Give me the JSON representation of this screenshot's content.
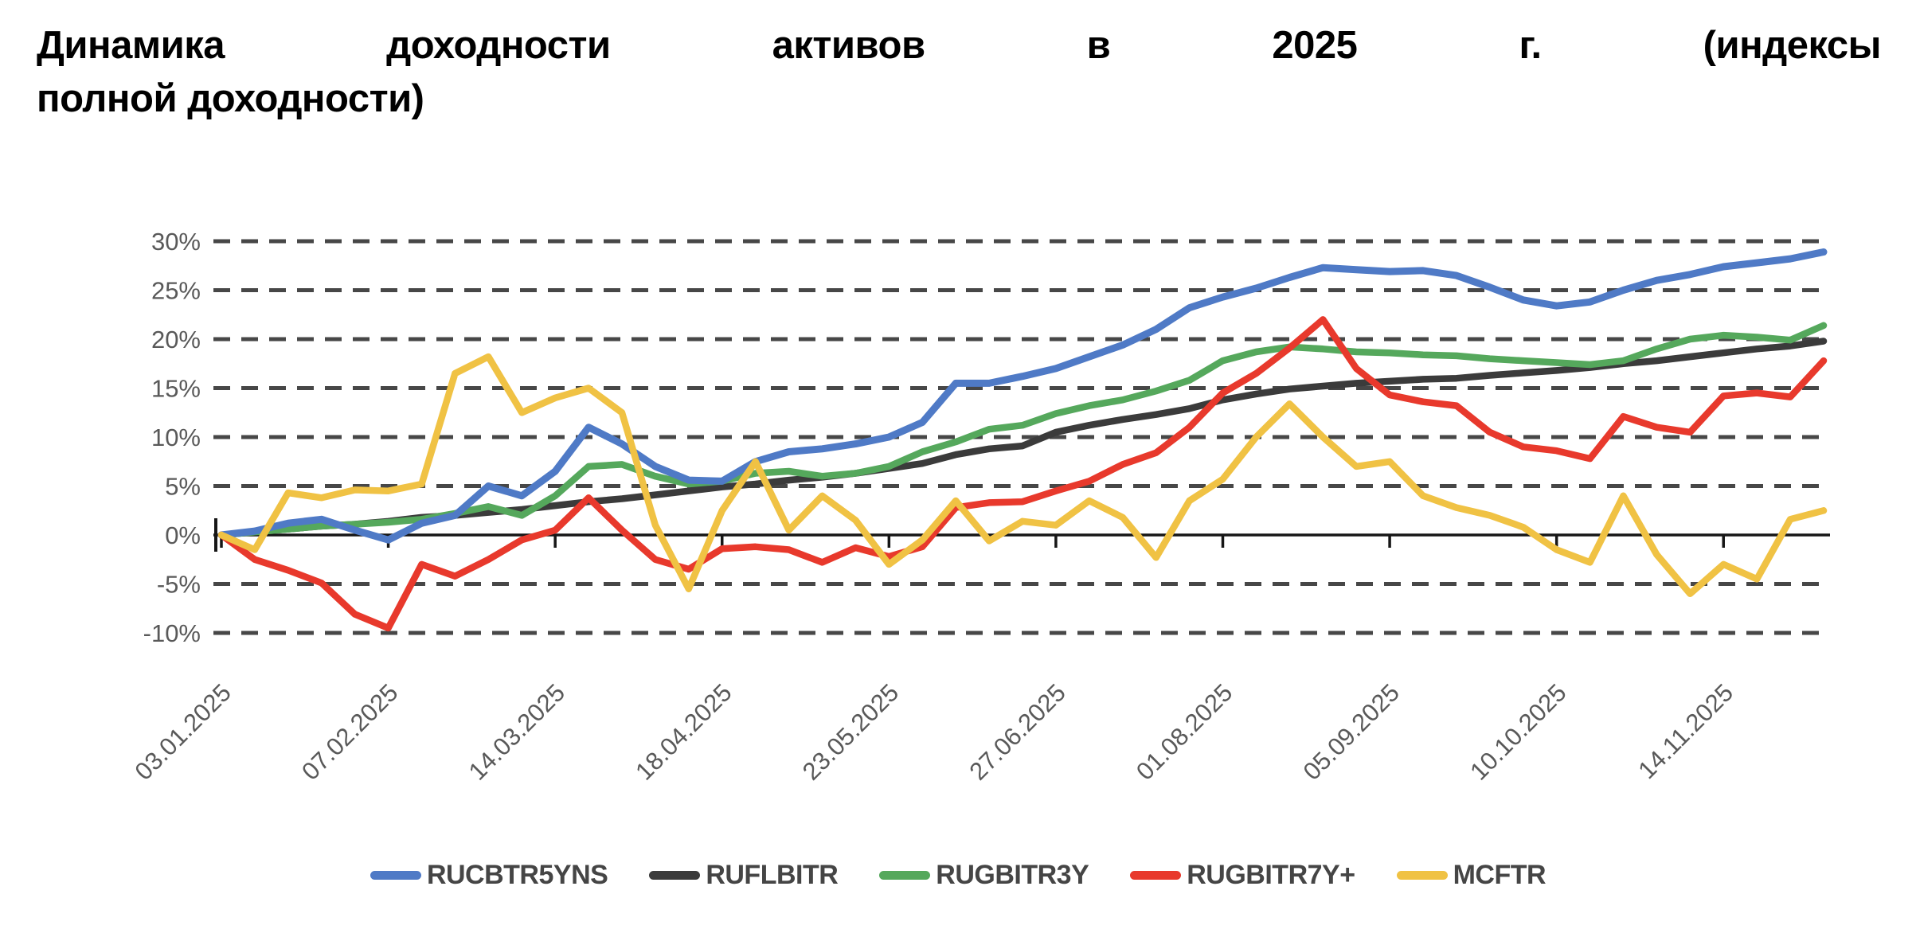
{
  "page": {
    "background": "#ffffff"
  },
  "title": {
    "line1": "Динамика доходности активов в 2025 г. (индексы",
    "line2": "полной доходности)"
  },
  "chart_data": {
    "type": "line",
    "title": "Динамика доходности активов в 2025 г. (индексы полной доходности)",
    "x_type": "weekly dates",
    "x_dates": [
      "03.01.2025",
      "10.01.2025",
      "17.01.2025",
      "24.01.2025",
      "31.01.2025",
      "07.02.2025",
      "14.02.2025",
      "21.02.2025",
      "28.02.2025",
      "07.03.2025",
      "14.03.2025",
      "21.03.2025",
      "28.03.2025",
      "04.04.2025",
      "11.04.2025",
      "18.04.2025",
      "25.04.2025",
      "02.05.2025",
      "09.05.2025",
      "16.05.2025",
      "23.05.2025",
      "30.05.2025",
      "06.06.2025",
      "13.06.2025",
      "20.06.2025",
      "27.06.2025",
      "04.07.2025",
      "11.07.2025",
      "18.07.2025",
      "25.07.2025",
      "01.08.2025",
      "08.08.2025",
      "15.08.2025",
      "22.08.2025",
      "29.08.2025",
      "05.09.2025",
      "12.09.2025",
      "19.09.2025",
      "26.09.2025",
      "03.10.2025",
      "10.10.2025",
      "17.10.2025",
      "24.10.2025",
      "31.10.2025",
      "07.11.2025",
      "14.11.2025",
      "21.11.2025",
      "28.11.2025",
      "05.12.2025"
    ],
    "x_tick_indices": [
      0,
      5,
      10,
      15,
      20,
      25,
      30,
      35,
      40,
      45
    ],
    "x_tick_labels": [
      "03.01.2025",
      "07.02.2025",
      "14.03.2025",
      "18.04.2025",
      "23.05.2025",
      "27.06.2025",
      "01.08.2025",
      "05.09.2025",
      "10.10.2025",
      "14.11.2025"
    ],
    "yticks": [
      30,
      25,
      20,
      15,
      10,
      5,
      0,
      -5,
      -10
    ],
    "ytick_labels": [
      "30%",
      "25%",
      "20%",
      "15%",
      "10%",
      "5%",
      "0%",
      "-5%",
      "-10%"
    ],
    "ylim": [
      -12,
      31
    ],
    "y_unit": "%",
    "grid": "horizontal-dashed",
    "zero_axis": true,
    "legend_position": "bottom",
    "series": [
      {
        "name": "RUCBTR5YNS",
        "color": "#4F7AC6",
        "values": [
          0,
          0.4,
          1.2,
          1.6,
          0.5,
          -0.5,
          1.2,
          2.0,
          5.0,
          4.0,
          6.5,
          11.0,
          9.3,
          7.0,
          5.6,
          5.5,
          7.5,
          8.5,
          8.8,
          9.3,
          10.0,
          11.5,
          15.5,
          15.5,
          16.2,
          17.0,
          18.2,
          19.4,
          21.0,
          23.2,
          24.3,
          25.2,
          26.3,
          27.3,
          27.1,
          26.9,
          27.0,
          26.5,
          25.3,
          24.0,
          23.4,
          23.8,
          25.0,
          26.0,
          26.6,
          27.4,
          27.8,
          28.2,
          28.9
        ]
      },
      {
        "name": "RUFLBITR",
        "color": "#3B3B3B",
        "values": [
          0,
          0.3,
          0.6,
          0.9,
          1.1,
          1.4,
          1.8,
          2.0,
          2.3,
          2.6,
          3.0,
          3.4,
          3.7,
          4.1,
          4.5,
          4.9,
          5.2,
          5.6,
          5.9,
          6.3,
          6.8,
          7.3,
          8.2,
          8.8,
          9.1,
          10.5,
          11.2,
          11.8,
          12.3,
          12.9,
          13.8,
          14.4,
          14.9,
          15.2,
          15.5,
          15.7,
          15.9,
          16.0,
          16.3,
          16.55,
          16.8,
          17.1,
          17.5,
          17.8,
          18.2,
          18.6,
          19.0,
          19.3,
          19.8
        ]
      },
      {
        "name": "RUGBITR3Y",
        "color": "#55A85C",
        "values": [
          0,
          0.3,
          0.6,
          0.9,
          1.1,
          1.3,
          1.6,
          2.2,
          2.9,
          2.0,
          4.0,
          7.0,
          7.2,
          6.0,
          5.2,
          5.5,
          6.3,
          6.5,
          6.0,
          6.3,
          7.0,
          8.5,
          9.5,
          10.8,
          11.2,
          12.4,
          13.2,
          13.8,
          14.7,
          15.8,
          17.8,
          18.7,
          19.2,
          19.0,
          18.7,
          18.6,
          18.4,
          18.3,
          18.0,
          17.8,
          17.6,
          17.4,
          17.8,
          19.0,
          20.0,
          20.4,
          20.2,
          19.9,
          21.4
        ]
      },
      {
        "name": "RUGBITR7Y+",
        "color": "#E8392C",
        "values": [
          0,
          -2.5,
          -3.6,
          -4.9,
          -8.1,
          -9.5,
          -3.0,
          -4.2,
          -2.5,
          -0.5,
          0.5,
          3.8,
          0.5,
          -2.5,
          -3.5,
          -1.4,
          -1.2,
          -1.5,
          -2.8,
          -1.3,
          -2.2,
          -1.2,
          2.8,
          3.3,
          3.4,
          4.5,
          5.5,
          7.2,
          8.4,
          11.0,
          14.5,
          16.5,
          19.1,
          22.0,
          17.0,
          14.3,
          13.6,
          13.2,
          10.5,
          9.0,
          8.6,
          7.8,
          12.1,
          11.0,
          10.5,
          14.2,
          14.5,
          14.1,
          17.8
        ]
      },
      {
        "name": "MCFTR",
        "color": "#F0C244",
        "values": [
          0,
          -1.5,
          4.3,
          3.8,
          4.6,
          4.5,
          5.2,
          16.5,
          18.2,
          12.5,
          14.0,
          15.0,
          12.5,
          1.0,
          -5.5,
          2.5,
          7.5,
          0.5,
          4.0,
          1.5,
          -3.0,
          -0.5,
          3.5,
          -0.6,
          1.4,
          1.0,
          3.5,
          1.8,
          -2.3,
          3.5,
          5.7,
          10.0,
          13.4,
          10.0,
          7.0,
          7.5,
          4.0,
          2.8,
          2.0,
          0.8,
          -1.5,
          -2.8,
          4.0,
          -2.0,
          -6.0,
          -3.0,
          -4.5,
          1.6,
          2.5
        ]
      }
    ],
    "styles": {
      "grid_color": "#474747",
      "axis_color": "#161616",
      "tick_label_color": "#595959",
      "legend_text_color": "#454545"
    }
  }
}
